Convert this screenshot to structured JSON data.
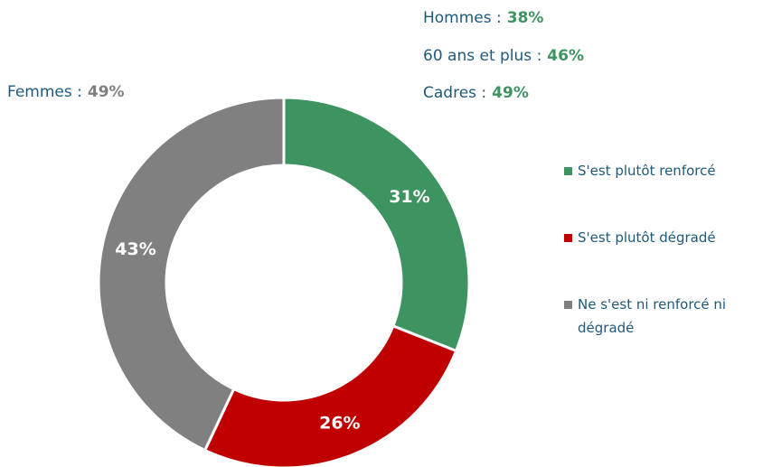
{
  "chart_data": {
    "type": "donut",
    "categories": [
      "S'est plutôt renforcé",
      "S'est plutôt dégradé",
      "Ne s'est ni renforcé ni dégradé"
    ],
    "values": [
      31,
      26,
      43
    ],
    "value_labels": [
      "31%",
      "26%",
      "43%"
    ],
    "colors": [
      "#3e9460",
      "#c00000",
      "#808080"
    ],
    "legend": "right",
    "annotations": [
      {
        "label": "Hommes :",
        "value": 38,
        "value_label": "38%",
        "color": "#3e9460"
      },
      {
        "label": "60 ans et plus :",
        "value": 46,
        "value_label": "46%",
        "color": "#3e9460"
      },
      {
        "label": "Cadres :",
        "value": 49,
        "value_label": "49%",
        "color": "#3e9460"
      },
      {
        "label": "Femmes :",
        "value": 49,
        "value_label": "49%",
        "color": "#808080"
      }
    ]
  }
}
